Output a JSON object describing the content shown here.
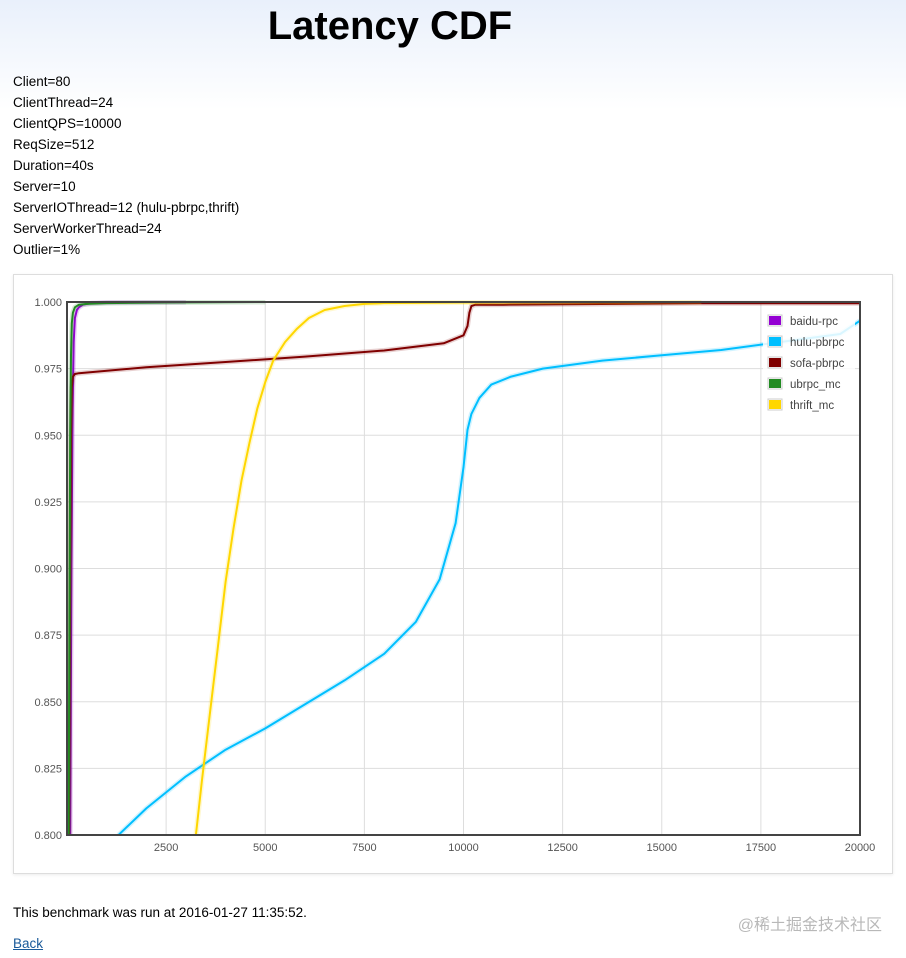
{
  "page": {
    "title": "Latency CDF",
    "params": [
      "Client=80",
      "ClientThread=24",
      "ClientQPS=10000",
      "ReqSize=512",
      "Duration=40s",
      "Server=10",
      "ServerIOThread=12 (hulu-pbrpc,thrift)",
      "ServerWorkerThread=24",
      "Outlier=1%"
    ],
    "footer_text": "This benchmark was run at 2016-01-27 11:35:52.",
    "back_label": "Back",
    "watermark": "@稀土掘金技术社区"
  },
  "chart_data": {
    "type": "line",
    "title": "",
    "xlabel": "",
    "ylabel": "",
    "xlim": [
      0,
      20000
    ],
    "ylim": [
      0.8,
      1.0
    ],
    "x_ticks": [
      2500,
      5000,
      7500,
      10000,
      12500,
      15000,
      17500,
      20000
    ],
    "y_ticks": [
      "0.800",
      "0.825",
      "0.850",
      "0.875",
      "0.900",
      "0.925",
      "0.950",
      "0.975",
      "1.000"
    ],
    "grid": true,
    "legend_position": "top-right",
    "series": [
      {
        "name": "baidu-rpc",
        "color": "#9400d3",
        "x": [
          80,
          110,
          140,
          170,
          200,
          250,
          300,
          400,
          600,
          1000,
          3000
        ],
        "y": [
          0.8,
          0.9,
          0.96,
          0.985,
          0.994,
          0.997,
          0.998,
          0.999,
          0.9995,
          0.9998,
          1.0
        ]
      },
      {
        "name": "hulu-pbrpc",
        "color": "#00bfff",
        "x": [
          1300,
          2000,
          3000,
          4000,
          5000,
          6000,
          7000,
          8000,
          8800,
          9400,
          9800,
          10000,
          10100,
          10200,
          10400,
          10700,
          11200,
          12000,
          13500,
          15000,
          16500,
          18000,
          19500,
          20000
        ],
        "y": [
          0.8,
          0.81,
          0.822,
          0.832,
          0.84,
          0.849,
          0.858,
          0.868,
          0.88,
          0.896,
          0.917,
          0.938,
          0.952,
          0.958,
          0.964,
          0.969,
          0.972,
          0.975,
          0.978,
          0.98,
          0.982,
          0.985,
          0.988,
          0.993
        ]
      },
      {
        "name": "sofa-pbrpc",
        "color": "#800000",
        "x": [
          50,
          80,
          100,
          120,
          150,
          200,
          300,
          2000,
          4000,
          6000,
          8000,
          9500,
          10000,
          10100,
          10150,
          10200,
          10300,
          11000,
          13000,
          16000,
          20000
        ],
        "y": [
          0.8,
          0.9,
          0.95,
          0.968,
          0.972,
          0.973,
          0.9733,
          0.9755,
          0.9775,
          0.9795,
          0.9818,
          0.9845,
          0.9875,
          0.991,
          0.996,
          0.9985,
          0.999,
          0.999,
          0.9992,
          0.9995,
          0.9995
        ]
      },
      {
        "name": "ubrpc_mc",
        "color": "#228b22",
        "x": [
          40,
          60,
          80,
          100,
          120,
          150,
          200,
          300,
          500,
          1000,
          2500,
          5000
        ],
        "y": [
          0.8,
          0.88,
          0.95,
          0.98,
          0.992,
          0.996,
          0.998,
          0.999,
          0.9993,
          0.9996,
          0.9998,
          1.0
        ]
      },
      {
        "name": "thrift_mc",
        "color": "#ffd700",
        "x": [
          3250,
          3400,
          3600,
          3800,
          4000,
          4200,
          4400,
          4600,
          4800,
          5000,
          5200,
          5500,
          5800,
          6100,
          6500,
          7000,
          7500,
          8000,
          10000,
          12000,
          15000,
          16000
        ],
        "y": [
          0.8,
          0.82,
          0.845,
          0.87,
          0.895,
          0.915,
          0.933,
          0.947,
          0.96,
          0.97,
          0.978,
          0.985,
          0.99,
          0.994,
          0.997,
          0.9985,
          0.9993,
          0.9996,
          0.9998,
          0.9999,
          1.0,
          1.0
        ]
      }
    ]
  }
}
